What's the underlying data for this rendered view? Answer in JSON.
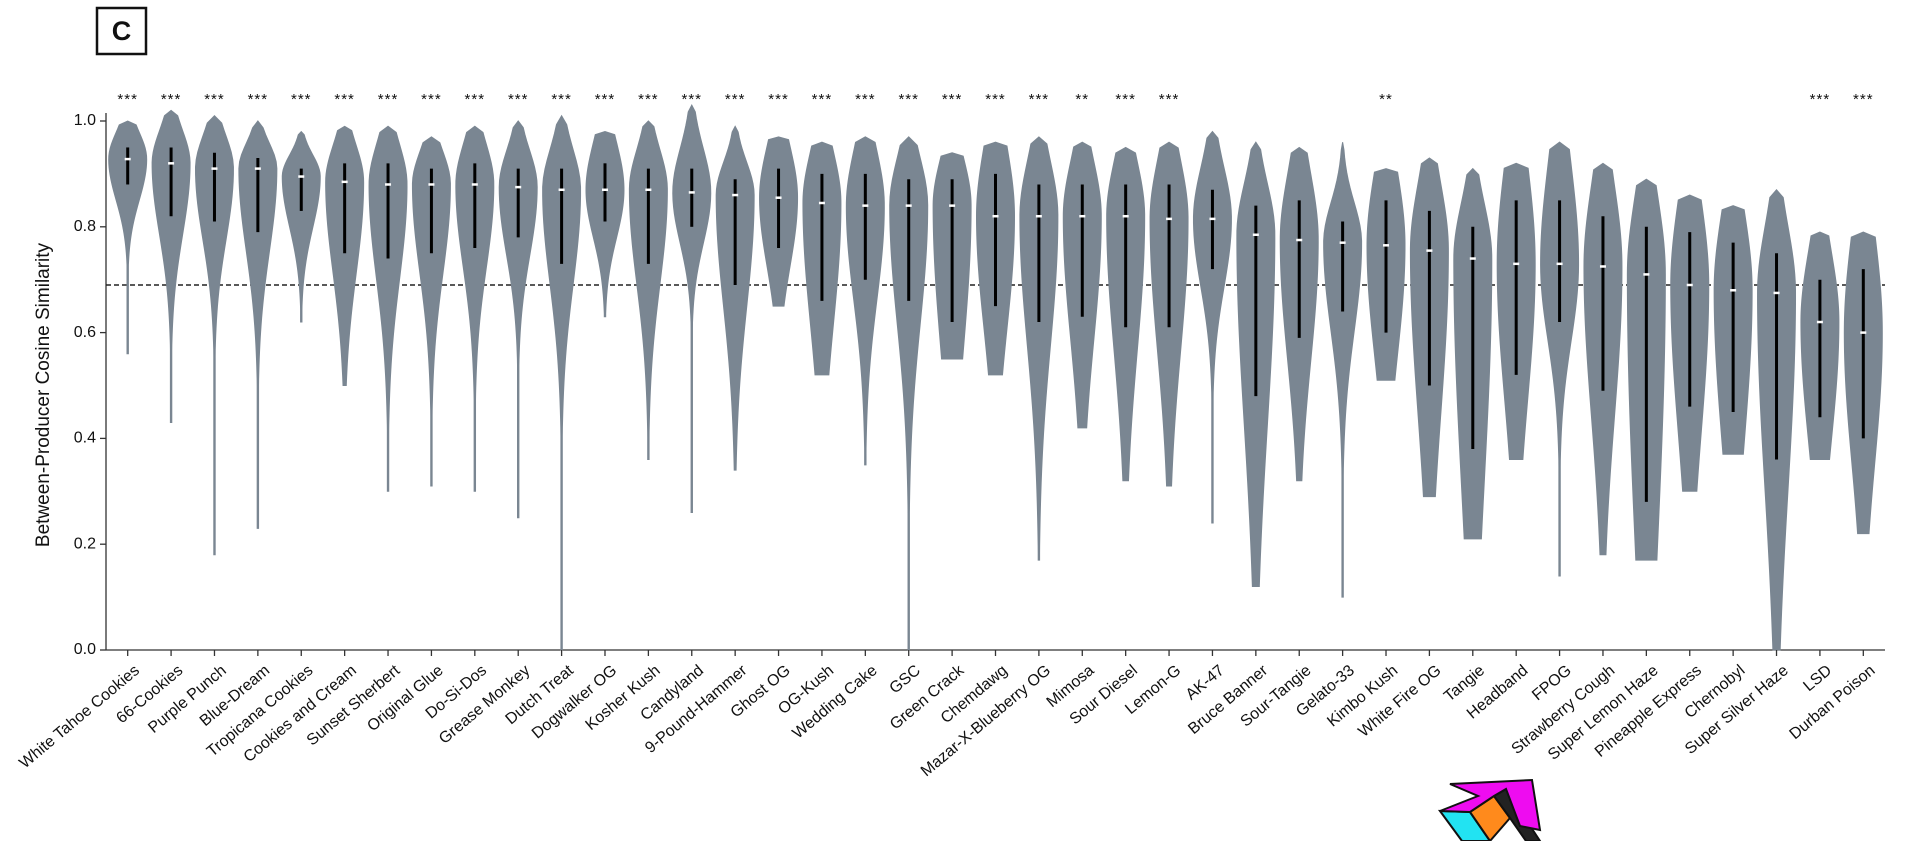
{
  "chart_data": {
    "type": "violin",
    "panel_label": "C",
    "ylabel": "Between-Producer Cosine Similarity",
    "color": "#7a8692",
    "ylim": [
      0,
      1.0
    ],
    "yticks": [
      {
        "value": 0,
        "label": "0.0"
      },
      0.2,
      0.4,
      0.6,
      {
        "value": 1,
        "label": "1.0"
      },
      0.8
    ],
    "reference_line": 0.69,
    "categories": [
      "White Tahoe Cookies",
      "66-Cookies",
      "Purple Punch",
      "Blue-Dream",
      "Tropicana Cookies",
      "Cookies and Cream",
      "Sunset Sherbert",
      "Original Glue",
      "Do-Si-Dos",
      "Grease Monkey",
      "Dutch Treat",
      "Dogwalker OG",
      "Kosher Kush",
      "Candyland",
      "9-Pound-Hammer",
      "Ghost OG",
      "OG-Kush",
      "Wedding Cake",
      "GSC",
      "Green Crack",
      "Chemdawg",
      "Mazar-X-Blueberry OG",
      "Mimosa",
      "Sour Diesel",
      "Lemon-G",
      "AK-47",
      "Bruce Banner",
      "Sour-Tangie",
      "Gelato-33",
      "Kimbo Kush",
      "White Fire OG",
      "Tangie",
      "Headband",
      "FPOG",
      "Strawberry Cough",
      "Super Lemon Haze",
      "Pineapple Express",
      "Chernobyl",
      "Super Silver Haze",
      "LSD",
      "Durban Poison"
    ],
    "median": [
      0.928,
      0.92,
      0.91,
      0.91,
      0.895,
      0.885,
      0.88,
      0.88,
      0.88,
      0.875,
      0.87,
      0.87,
      0.87,
      0.865,
      0.86,
      0.855,
      0.845,
      0.84,
      0.84,
      0.84,
      0.82,
      0.82,
      0.82,
      0.82,
      0.815,
      0.815,
      0.785,
      0.775,
      0.77,
      0.765,
      0.755,
      0.74,
      0.73,
      0.73,
      0.725,
      0.71,
      0.69,
      0.68,
      0.675,
      0.62,
      0.6
    ],
    "q1": [
      0.88,
      0.82,
      0.81,
      0.79,
      0.83,
      0.75,
      0.74,
      0.75,
      0.76,
      0.78,
      0.73,
      0.81,
      0.73,
      0.8,
      0.69,
      0.76,
      0.66,
      0.7,
      0.66,
      0.62,
      0.65,
      0.62,
      0.63,
      0.61,
      0.61,
      0.72,
      0.48,
      0.59,
      0.64,
      0.6,
      0.5,
      0.38,
      0.52,
      0.62,
      0.49,
      0.28,
      0.46,
      0.45,
      0.36,
      0.44,
      0.4
    ],
    "q3": [
      0.95,
      0.95,
      0.94,
      0.93,
      0.91,
      0.92,
      0.92,
      0.91,
      0.92,
      0.91,
      0.91,
      0.92,
      0.91,
      0.91,
      0.89,
      0.91,
      0.9,
      0.9,
      0.89,
      0.89,
      0.9,
      0.88,
      0.88,
      0.88,
      0.88,
      0.87,
      0.84,
      0.85,
      0.81,
      0.85,
      0.83,
      0.8,
      0.85,
      0.85,
      0.82,
      0.8,
      0.79,
      0.77,
      0.75,
      0.7,
      0.72
    ],
    "min": [
      0.56,
      0.43,
      0.18,
      0.23,
      0.62,
      0.5,
      0.3,
      0.31,
      0.3,
      0.25,
      0.0,
      0.63,
      0.36,
      0.26,
      0.34,
      0.65,
      0.52,
      0.35,
      0.0,
      0.55,
      0.52,
      0.17,
      0.42,
      0.32,
      0.31,
      0.24,
      0.12,
      0.32,
      0.1,
      0.51,
      0.29,
      0.21,
      0.36,
      0.14,
      0.18,
      0.17,
      0.3,
      0.37,
      0.0,
      0.36,
      0.22
    ],
    "max": [
      1.0,
      1.02,
      1.01,
      1.0,
      0.98,
      0.99,
      0.99,
      0.97,
      0.99,
      1.0,
      1.01,
      0.98,
      1.0,
      1.03,
      0.99,
      0.97,
      0.96,
      0.97,
      0.97,
      0.94,
      0.96,
      0.97,
      0.96,
      0.95,
      0.96,
      0.98,
      0.96,
      0.95,
      0.96,
      0.91,
      0.93,
      0.91,
      0.92,
      0.96,
      0.92,
      0.89,
      0.86,
      0.84,
      0.87,
      0.79,
      0.79
    ],
    "significance": [
      "***",
      "***",
      "***",
      "***",
      "***",
      "***",
      "***",
      "***",
      "***",
      "***",
      "***",
      "***",
      "***",
      "***",
      "***",
      "***",
      "***",
      "***",
      "***",
      "***",
      "***",
      "***",
      "**",
      "***",
      "***",
      null,
      null,
      null,
      null,
      "**",
      null,
      null,
      null,
      null,
      null,
      null,
      null,
      null,
      null,
      "***",
      "***"
    ]
  }
}
